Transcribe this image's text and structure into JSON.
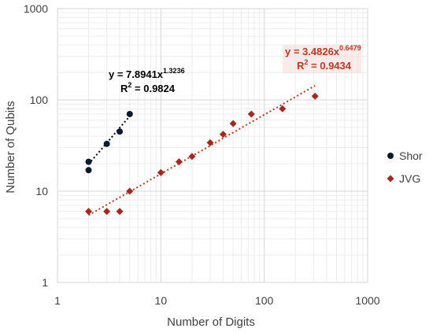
{
  "chart_data": {
    "type": "scatter",
    "xscale": "log",
    "yscale": "log",
    "xlim": [
      1,
      1000
    ],
    "ylim": [
      1,
      1000
    ],
    "xlabel": "Number of Digits",
    "ylabel": "Number of Qubits",
    "x_ticks": [
      "1",
      "10",
      "100",
      "1000"
    ],
    "y_ticks": [
      "1",
      "10",
      "100",
      "1000"
    ],
    "grid": true,
    "legend_position": "right",
    "series": [
      {
        "name": "Shor",
        "color": "#0b1a33",
        "marker": "circle",
        "points": [
          [
            2,
            17
          ],
          [
            2,
            21
          ],
          [
            3,
            33
          ],
          [
            4,
            45
          ],
          [
            5,
            70
          ]
        ],
        "trendline": {
          "a": 7.8941,
          "b": 1.3236,
          "x_range": [
            2,
            5.2
          ],
          "color": "#000000",
          "equation": {
            "prefix": "y = 7.8941x",
            "exponent": "1.3236",
            "r2_prefix": "R",
            "r2_exp": "2",
            "r2_value": " = 0.9824"
          }
        }
      },
      {
        "name": "JVG",
        "color": "#a6281c",
        "marker": "diamond",
        "points": [
          [
            2,
            6
          ],
          [
            3,
            6
          ],
          [
            4,
            6
          ],
          [
            5,
            10
          ],
          [
            10,
            16
          ],
          [
            15,
            21
          ],
          [
            20,
            24
          ],
          [
            30,
            34
          ],
          [
            40,
            42
          ],
          [
            50,
            55
          ],
          [
            75,
            70
          ],
          [
            150,
            80
          ],
          [
            310,
            110
          ]
        ],
        "trendline": {
          "a": 3.4826,
          "b": 0.6479,
          "x_range": [
            2,
            310
          ],
          "color": "#c0351f",
          "equation": {
            "prefix": "y = 3.4826x",
            "exponent": "0.6479",
            "r2_prefix": "R",
            "r2_exp": "2",
            "r2_value": " = 0.9434"
          }
        }
      }
    ]
  }
}
